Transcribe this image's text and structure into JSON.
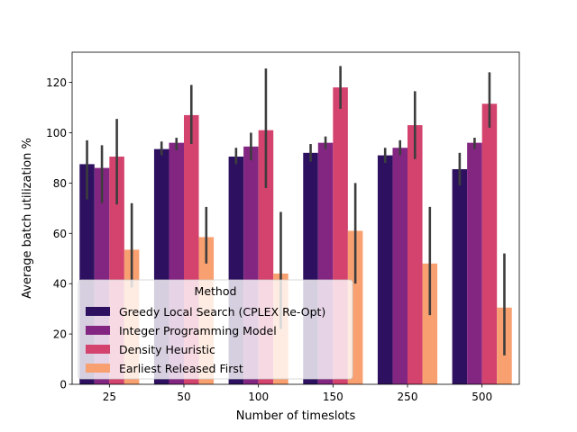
{
  "chart_data": {
    "type": "bar",
    "categories": [
      "25",
      "50",
      "100",
      "150",
      "250",
      "500"
    ],
    "xlabel": "Number of timeslots",
    "ylabel": "Average batch utilization %",
    "ylim": [
      0,
      132
    ],
    "yticks": [
      0,
      20,
      40,
      60,
      80,
      100,
      120
    ],
    "grid": false,
    "legend": {
      "title": "Method",
      "placement": "lower-left"
    },
    "error_bars": true,
    "series": [
      {
        "name": "Greedy Local Search (CPLEX Re-Opt)",
        "color": "#2d1160",
        "values": [
          87.5,
          93.5,
          90.5,
          92,
          91,
          85.5
        ],
        "err_low": [
          73.5,
          91,
          87.5,
          88.5,
          88,
          79
        ],
        "err_high": [
          97,
          96.5,
          94,
          95.5,
          94,
          92
        ]
      },
      {
        "name": "Integer Programming Model",
        "color": "#822681",
        "values": [
          86,
          96,
          94.5,
          96,
          94,
          96
        ],
        "err_low": [
          72,
          93,
          89,
          93.5,
          91,
          93.5
        ],
        "err_high": [
          95,
          98,
          100,
          98.5,
          97,
          98
        ]
      },
      {
        "name": "Density Heuristic",
        "color": "#d3436e",
        "values": [
          90.5,
          107,
          101,
          118,
          103,
          111.5
        ],
        "err_low": [
          71.5,
          95.5,
          78,
          109.5,
          89.5,
          102
        ],
        "err_high": [
          105.5,
          119,
          125.5,
          126.5,
          116.5,
          124
        ]
      },
      {
        "name": "Earliest Released First",
        "color": "#f8a070",
        "values": [
          53.5,
          58.5,
          44,
          61,
          48,
          30.5
        ],
        "err_low": [
          38.5,
          48,
          22,
          40,
          27.5,
          11.5
        ],
        "err_high": [
          72,
          70.5,
          68.5,
          80,
          70.5,
          52
        ]
      }
    ]
  }
}
